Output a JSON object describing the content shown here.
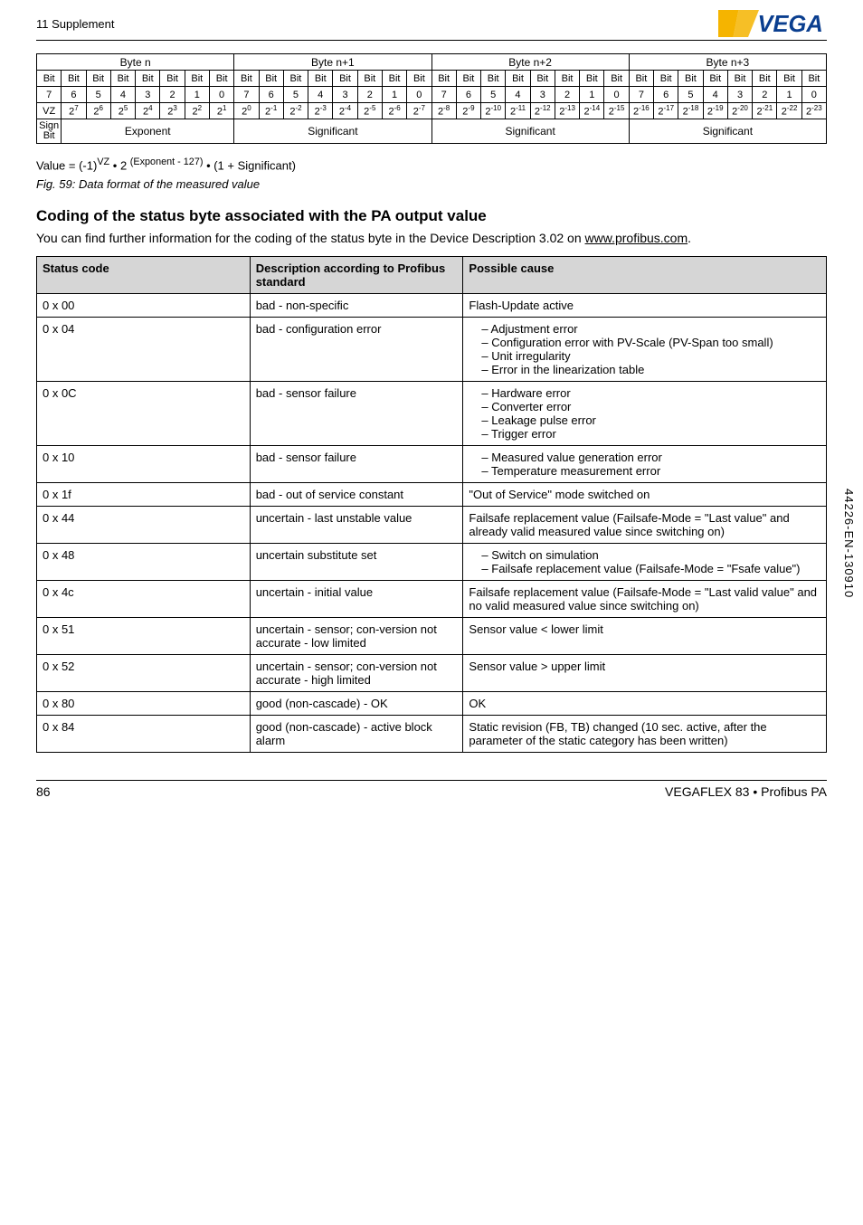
{
  "header": {
    "supplement": "11 Supplement"
  },
  "bit_table": {
    "byte_headers": [
      "Byte n",
      "Byte n+1",
      "Byte n+2",
      "Byte n+3"
    ],
    "row_bit_label": "Bit",
    "row_nums": [
      "7",
      "6",
      "5",
      "4",
      "3",
      "2",
      "1",
      "0",
      "7",
      "6",
      "5",
      "4",
      "3",
      "2",
      "1",
      "0",
      "7",
      "6",
      "5",
      "4",
      "3",
      "2",
      "1",
      "0",
      "7",
      "6",
      "5",
      "4",
      "3",
      "2",
      "1",
      "0"
    ],
    "row_exp_prefix": "2",
    "row_exp_vals": [
      "7",
      "6",
      "5",
      "4",
      "3",
      "2",
      "1",
      "0",
      "-1",
      "-2",
      "-3",
      "-4",
      "-5",
      "-6",
      "-7",
      "-8",
      "-9",
      "-10",
      "-11",
      "-12",
      "-13",
      "-14",
      "-15",
      "-16",
      "-17",
      "-18",
      "-19",
      "-20",
      "-21",
      "-22",
      "-23"
    ],
    "vz": "VZ",
    "sign": "Sign Bit",
    "exponent": "Exponent",
    "significant": "Significant"
  },
  "formula_html": "Value = (-1)<sup>VZ</sup> &bull; 2 <sup>(Exponent - 127)</sup> &bull; (1 + Significant)",
  "figcap": "Fig. 59: Data format of the measured value",
  "section_title": "Coding of the status byte associated with the PA output value",
  "section_para_1": "You can find further information for the coding of the status byte in the Device Description 3.02 on ",
  "section_link": "www.profibus.com",
  "section_para_2": ".",
  "status_table": {
    "headers": [
      "Status code",
      "Description according to Profibus standard",
      "Possible cause"
    ],
    "rows": [
      {
        "code": "0 x 00",
        "desc": "bad - non-specific",
        "cause_text": "Flash-Update active"
      },
      {
        "code": "0 x 04",
        "desc": "bad - configuration error",
        "cause_list": [
          "Adjustment error",
          "Configuration error with PV-Scale (PV-Span too small)",
          "Unit irregularity",
          "Error in the linearization table"
        ]
      },
      {
        "code": "0 x 0C",
        "desc": "bad - sensor failure",
        "cause_list": [
          "Hardware error",
          "Converter error",
          "Leakage pulse error",
          "Trigger error"
        ]
      },
      {
        "code": "0 x 10",
        "desc": "bad - sensor failure",
        "cause_list": [
          "Measured value generation error",
          "Temperature measurement error"
        ]
      },
      {
        "code": "0 x 1f",
        "desc": "bad - out of service constant",
        "cause_text": "\"Out of Service\" mode switched on"
      },
      {
        "code": "0 x 44",
        "desc": "uncertain - last unstable value",
        "cause_text": "Failsafe replacement value (Failsafe-Mode = \"Last value\" and already valid measured value since switching on)"
      },
      {
        "code": "0 x 48",
        "desc": "uncertain substitute set",
        "cause_list": [
          "Switch on simulation",
          "Failsafe replacement value (Failsafe-Mode = \"Fsafe value\")"
        ]
      },
      {
        "code": "0 x 4c",
        "desc": "uncertain - initial value",
        "cause_text": "Failsafe replacement value (Failsafe-Mode = \"Last valid value\" and no valid measured value since switching on)"
      },
      {
        "code": "0 x 51",
        "desc": "uncertain - sensor; con-version not accurate - low limited",
        "cause_text": "Sensor value < lower limit"
      },
      {
        "code": "0 x 52",
        "desc": "uncertain - sensor; con-version not accurate - high limited",
        "cause_text": "Sensor value > upper limit"
      },
      {
        "code": "0 x 80",
        "desc": "good (non-cascade) - OK",
        "cause_text": "OK"
      },
      {
        "code": "0 x 84",
        "desc": "good (non-cascade) - active block alarm",
        "cause_text": "Static revision (FB, TB) changed (10 sec. active, after the parameter of the static category has been written)"
      }
    ]
  },
  "footer": {
    "page": "86",
    "product": "VEGAFLEX 83 • Profibus PA"
  },
  "side_code": "44226-EN-130910"
}
